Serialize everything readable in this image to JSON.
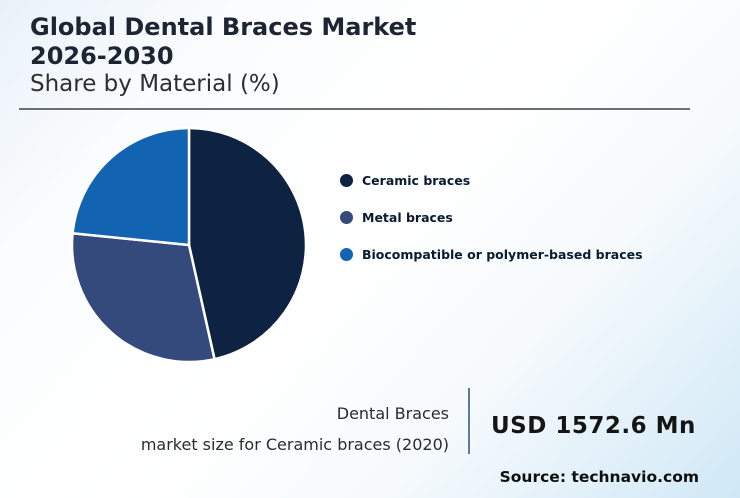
{
  "header": {
    "title_line1": "Global Dental Braces Market",
    "title_line2": "2026-2030",
    "subtitle": "Share by Material (%)"
  },
  "chart_data": {
    "type": "pie",
    "title": "Global Dental Braces Market 2026-2030 Share by Material (%)",
    "categories": [
      "Ceramic braces",
      "Metal braces",
      "Biocompatible or polymer-based braces"
    ],
    "values": [
      46.5,
      30.1,
      23.4
    ],
    "unit": "%",
    "colors": [
      "#0e2242",
      "#344a7d",
      "#1264b2"
    ],
    "start_angle_deg": 0,
    "direction": "clockwise",
    "legend_position": "right",
    "slice_border_color": "#ffffff"
  },
  "legend": {
    "items": [
      {
        "label": "Ceramic braces",
        "color": "#0e2242",
        "icon": "circle-swatch-icon"
      },
      {
        "label": "Metal braces",
        "color": "#344a7d",
        "icon": "circle-swatch-icon"
      },
      {
        "label": "Biocompatible or polymer-based braces",
        "color": "#1264b2",
        "icon": "circle-swatch-icon"
      }
    ]
  },
  "stat": {
    "label_line1": "Dental Braces",
    "label_line2": "market size for Ceramic braces (2020)",
    "value": "USD 1572.6 Mn"
  },
  "footer": {
    "source": "Source: technavio.com"
  }
}
